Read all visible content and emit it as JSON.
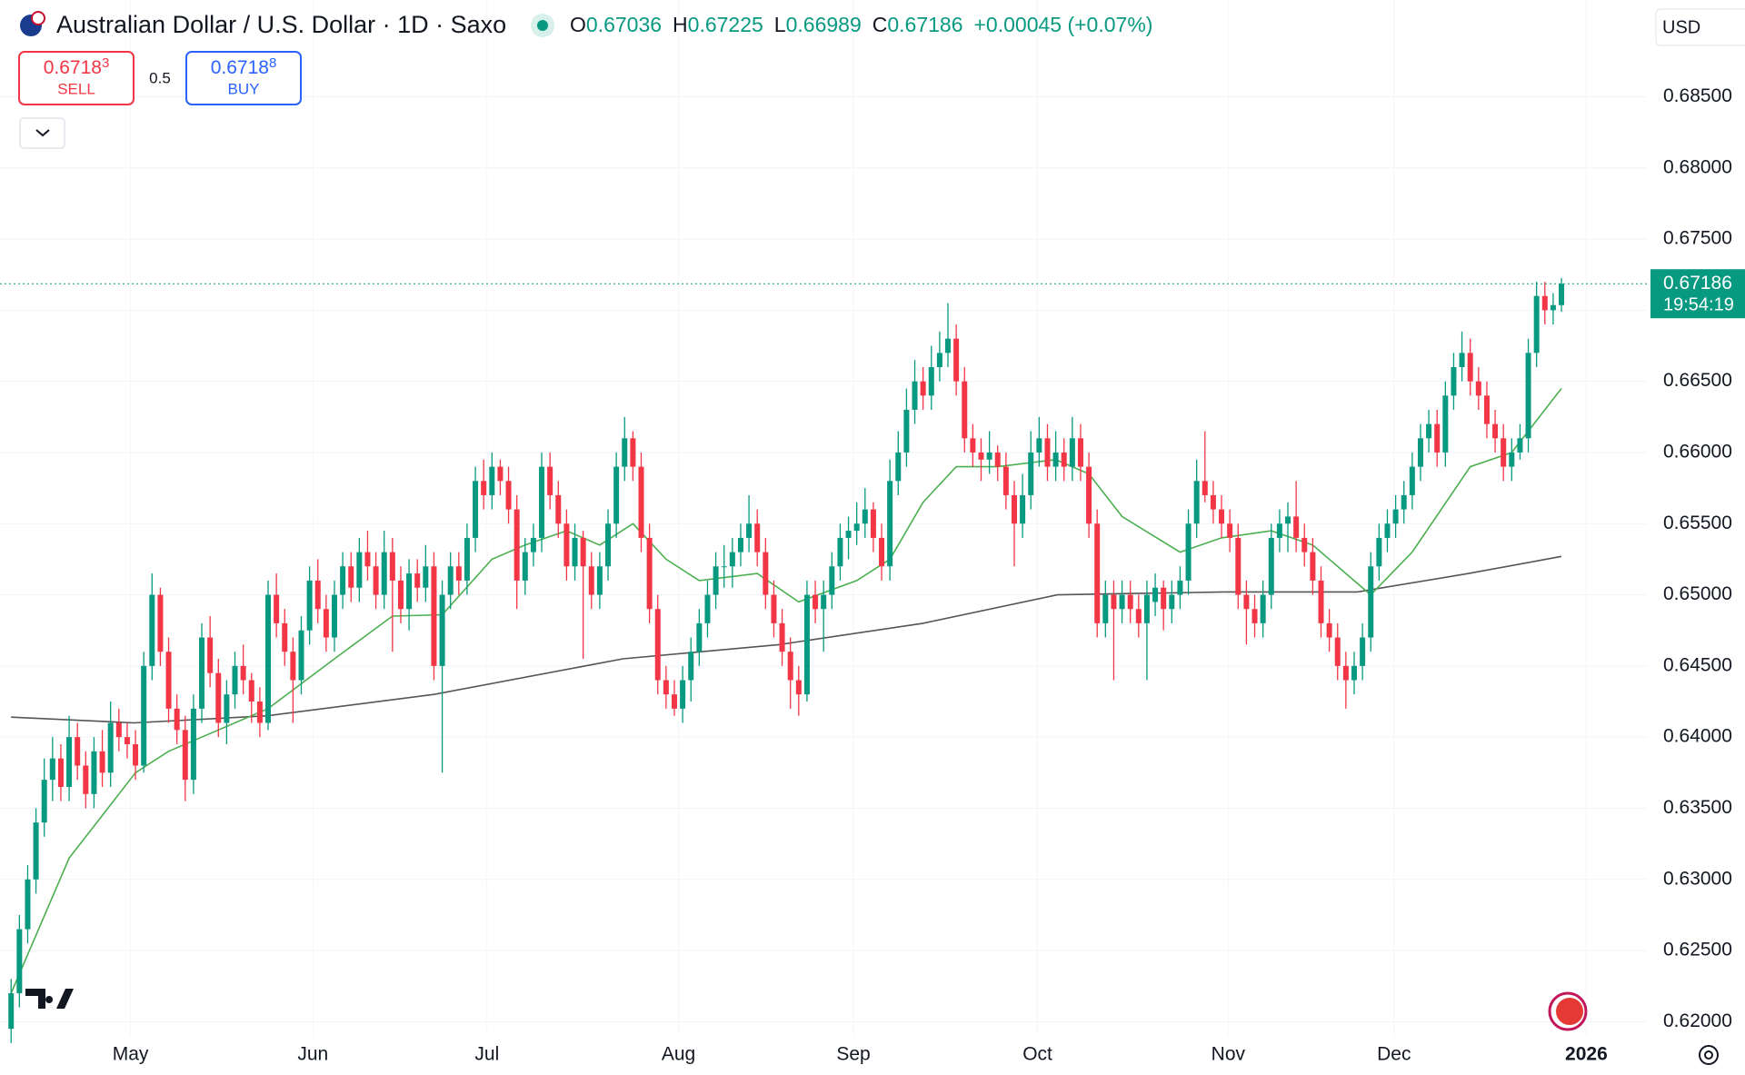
{
  "header": {
    "title": "Australian Dollar / U.S. Dollar · 1D · Saxo",
    "ohlc_labels": [
      "O",
      "H",
      "L",
      "C"
    ],
    "change": "+0.00045 (+0.07%)",
    "sell": {
      "price": "0.6718",
      "pip": "3",
      "label": "SELL"
    },
    "spread": "0.5",
    "buy": {
      "price": "0.6718",
      "pip": "8",
      "label": "BUY"
    },
    "currency": "USD",
    "countdown": "19:54:19"
  },
  "chart_data": {
    "type": "candlestick",
    "up_color": "#089981",
    "down_color": "#f23645",
    "grid": true,
    "ylim": [
      0.619,
      0.6918
    ],
    "xlim": [
      -1.34,
      197.3
    ],
    "yticks": [
      {
        "value": 0.685,
        "label": "0.68500"
      },
      {
        "value": 0.68,
        "label": "0.68000"
      },
      {
        "value": 0.675,
        "label": "0.67500"
      },
      {
        "value": 0.67,
        "label": "0.67000"
      },
      {
        "value": 0.665,
        "label": "0.66500"
      },
      {
        "value": 0.66,
        "label": "0.66000"
      },
      {
        "value": 0.655,
        "label": "0.65500"
      },
      {
        "value": 0.65,
        "label": "0.65000"
      },
      {
        "value": 0.645,
        "label": "0.64500"
      },
      {
        "value": 0.64,
        "label": "0.64000"
      },
      {
        "value": 0.635,
        "label": "0.63500"
      },
      {
        "value": 0.63,
        "label": "0.63000"
      },
      {
        "value": 0.625,
        "label": "0.62500"
      },
      {
        "value": 0.62,
        "label": "0.62000"
      }
    ],
    "xticks": [
      {
        "value": 14.4,
        "label": "May"
      },
      {
        "value": 36.4,
        "label": "Jun"
      },
      {
        "value": 57.4,
        "label": "Jul"
      },
      {
        "value": 80.5,
        "label": "Aug"
      },
      {
        "value": 101.6,
        "label": "Sep"
      },
      {
        "value": 123.8,
        "label": "Oct"
      },
      {
        "value": 146.8,
        "label": "Nov"
      },
      {
        "value": 166.8,
        "label": "Dec"
      },
      {
        "value": 190,
        "label": "2026"
      }
    ],
    "candles": [
      [
        0.6195,
        0.623,
        0.6185,
        0.622
      ],
      [
        0.622,
        0.6275,
        0.621,
        0.6265
      ],
      [
        0.6265,
        0.631,
        0.6255,
        0.63
      ],
      [
        0.63,
        0.635,
        0.629,
        0.634
      ],
      [
        0.634,
        0.6385,
        0.633,
        0.637
      ],
      [
        0.637,
        0.64,
        0.6355,
        0.6385
      ],
      [
        0.6385,
        0.6395,
        0.6355,
        0.6365
      ],
      [
        0.6365,
        0.6415,
        0.6355,
        0.64
      ],
      [
        0.64,
        0.641,
        0.637,
        0.638
      ],
      [
        0.638,
        0.639,
        0.635,
        0.636
      ],
      [
        0.636,
        0.64,
        0.635,
        0.639
      ],
      [
        0.639,
        0.6405,
        0.6365,
        0.6375
      ],
      [
        0.6375,
        0.6425,
        0.6365,
        0.641
      ],
      [
        0.641,
        0.642,
        0.639,
        0.64
      ],
      [
        0.64,
        0.641,
        0.6385,
        0.6395
      ],
      [
        0.6395,
        0.6405,
        0.637,
        0.638
      ],
      [
        0.638,
        0.646,
        0.6375,
        0.645
      ],
      [
        0.645,
        0.6515,
        0.644,
        0.65
      ],
      [
        0.65,
        0.6505,
        0.645,
        0.646
      ],
      [
        0.646,
        0.647,
        0.641,
        0.642
      ],
      [
        0.642,
        0.643,
        0.6395,
        0.6405
      ],
      [
        0.6405,
        0.6415,
        0.6355,
        0.637
      ],
      [
        0.637,
        0.643,
        0.636,
        0.642
      ],
      [
        0.642,
        0.648,
        0.641,
        0.647
      ],
      [
        0.647,
        0.6485,
        0.6435,
        0.6445
      ],
      [
        0.6445,
        0.6455,
        0.64,
        0.641
      ],
      [
        0.641,
        0.644,
        0.6395,
        0.643
      ],
      [
        0.643,
        0.646,
        0.642,
        0.645
      ],
      [
        0.645,
        0.6465,
        0.643,
        0.644
      ],
      [
        0.644,
        0.6445,
        0.641,
        0.6425
      ],
      [
        0.6425,
        0.6435,
        0.64,
        0.641
      ],
      [
        0.641,
        0.651,
        0.6405,
        0.65
      ],
      [
        0.65,
        0.6515,
        0.647,
        0.648
      ],
      [
        0.648,
        0.649,
        0.645,
        0.646
      ],
      [
        0.646,
        0.647,
        0.641,
        0.644
      ],
      [
        0.644,
        0.6485,
        0.643,
        0.6475
      ],
      [
        0.6475,
        0.652,
        0.6465,
        0.651
      ],
      [
        0.651,
        0.6525,
        0.648,
        0.649
      ],
      [
        0.649,
        0.65,
        0.646,
        0.647
      ],
      [
        0.647,
        0.651,
        0.646,
        0.65
      ],
      [
        0.65,
        0.653,
        0.649,
        0.652
      ],
      [
        0.652,
        0.653,
        0.6495,
        0.6505
      ],
      [
        0.6505,
        0.654,
        0.6495,
        0.653
      ],
      [
        0.653,
        0.6545,
        0.651,
        0.652
      ],
      [
        0.652,
        0.653,
        0.649,
        0.65
      ],
      [
        0.65,
        0.6545,
        0.649,
        0.653
      ],
      [
        0.653,
        0.654,
        0.646,
        0.651
      ],
      [
        0.651,
        0.652,
        0.648,
        0.649
      ],
      [
        0.649,
        0.6525,
        0.6475,
        0.6515
      ],
      [
        0.6515,
        0.6525,
        0.6495,
        0.6505
      ],
      [
        0.6505,
        0.6535,
        0.6495,
        0.652
      ],
      [
        0.652,
        0.653,
        0.644,
        0.645
      ],
      [
        0.645,
        0.651,
        0.6375,
        0.65
      ],
      [
        0.65,
        0.653,
        0.649,
        0.652
      ],
      [
        0.652,
        0.653,
        0.65,
        0.651
      ],
      [
        0.651,
        0.655,
        0.65,
        0.654
      ],
      [
        0.654,
        0.659,
        0.653,
        0.658
      ],
      [
        0.658,
        0.6595,
        0.656,
        0.657
      ],
      [
        0.657,
        0.66,
        0.656,
        0.659
      ],
      [
        0.659,
        0.6595,
        0.657,
        0.658
      ],
      [
        0.658,
        0.659,
        0.655,
        0.656
      ],
      [
        0.656,
        0.657,
        0.649,
        0.651
      ],
      [
        0.651,
        0.654,
        0.65,
        0.653
      ],
      [
        0.653,
        0.655,
        0.652,
        0.654
      ],
      [
        0.654,
        0.66,
        0.653,
        0.659
      ],
      [
        0.659,
        0.66,
        0.656,
        0.657
      ],
      [
        0.657,
        0.658,
        0.654,
        0.655
      ],
      [
        0.655,
        0.656,
        0.651,
        0.652
      ],
      [
        0.652,
        0.655,
        0.651,
        0.654
      ],
      [
        0.654,
        0.6545,
        0.6455,
        0.652
      ],
      [
        0.652,
        0.653,
        0.649,
        0.65
      ],
      [
        0.65,
        0.653,
        0.649,
        0.652
      ],
      [
        0.652,
        0.656,
        0.651,
        0.655
      ],
      [
        0.655,
        0.66,
        0.654,
        0.659
      ],
      [
        0.659,
        0.6625,
        0.658,
        0.661
      ],
      [
        0.661,
        0.6615,
        0.658,
        0.659
      ],
      [
        0.659,
        0.66,
        0.653,
        0.654
      ],
      [
        0.654,
        0.655,
        0.648,
        0.649
      ],
      [
        0.649,
        0.65,
        0.643,
        0.644
      ],
      [
        0.644,
        0.645,
        0.642,
        0.643
      ],
      [
        0.643,
        0.644,
        0.6415,
        0.642
      ],
      [
        0.642,
        0.645,
        0.641,
        0.644
      ],
      [
        0.644,
        0.647,
        0.6425,
        0.646
      ],
      [
        0.646,
        0.649,
        0.645,
        0.648
      ],
      [
        0.648,
        0.651,
        0.647,
        0.65
      ],
      [
        0.65,
        0.653,
        0.649,
        0.652
      ],
      [
        0.652,
        0.6535,
        0.6505,
        0.652
      ],
      [
        0.652,
        0.654,
        0.6505,
        0.653
      ],
      [
        0.653,
        0.655,
        0.652,
        0.654
      ],
      [
        0.654,
        0.657,
        0.653,
        0.655
      ],
      [
        0.655,
        0.656,
        0.652,
        0.653
      ],
      [
        0.653,
        0.654,
        0.649,
        0.65
      ],
      [
        0.65,
        0.651,
        0.647,
        0.648
      ],
      [
        0.648,
        0.649,
        0.645,
        0.646
      ],
      [
        0.646,
        0.647,
        0.642,
        0.644
      ],
      [
        0.644,
        0.645,
        0.6415,
        0.643
      ],
      [
        0.643,
        0.651,
        0.6425,
        0.65
      ],
      [
        0.65,
        0.651,
        0.648,
        0.649
      ],
      [
        0.649,
        0.651,
        0.646,
        0.65
      ],
      [
        0.65,
        0.653,
        0.649,
        0.652
      ],
      [
        0.652,
        0.655,
        0.651,
        0.654
      ],
      [
        0.654,
        0.6555,
        0.6525,
        0.6545
      ],
      [
        0.6545,
        0.6565,
        0.6535,
        0.655
      ],
      [
        0.655,
        0.6575,
        0.654,
        0.656
      ],
      [
        0.656,
        0.6565,
        0.653,
        0.654
      ],
      [
        0.654,
        0.655,
        0.651,
        0.652
      ],
      [
        0.652,
        0.6595,
        0.651,
        0.658
      ],
      [
        0.658,
        0.6615,
        0.657,
        0.66
      ],
      [
        0.66,
        0.6645,
        0.659,
        0.663
      ],
      [
        0.663,
        0.6665,
        0.662,
        0.665
      ],
      [
        0.665,
        0.666,
        0.663,
        0.664
      ],
      [
        0.664,
        0.6675,
        0.663,
        0.666
      ],
      [
        0.666,
        0.6685,
        0.665,
        0.667
      ],
      [
        0.667,
        0.6705,
        0.666,
        0.668
      ],
      [
        0.668,
        0.669,
        0.664,
        0.665
      ],
      [
        0.665,
        0.666,
        0.66,
        0.661
      ],
      [
        0.661,
        0.662,
        0.659,
        0.66
      ],
      [
        0.66,
        0.661,
        0.658,
        0.6595
      ],
      [
        0.6595,
        0.6615,
        0.6585,
        0.66
      ],
      [
        0.66,
        0.6605,
        0.658,
        0.659
      ],
      [
        0.659,
        0.66,
        0.656,
        0.657
      ],
      [
        0.657,
        0.658,
        0.652,
        0.655
      ],
      [
        0.655,
        0.6585,
        0.654,
        0.657
      ],
      [
        0.657,
        0.6615,
        0.656,
        0.66
      ],
      [
        0.66,
        0.6625,
        0.659,
        0.661
      ],
      [
        0.661,
        0.662,
        0.658,
        0.659
      ],
      [
        0.659,
        0.6615,
        0.658,
        0.66
      ],
      [
        0.66,
        0.661,
        0.658,
        0.659
      ],
      [
        0.659,
        0.6625,
        0.658,
        0.661
      ],
      [
        0.661,
        0.662,
        0.658,
        0.659
      ],
      [
        0.659,
        0.66,
        0.654,
        0.655
      ],
      [
        0.655,
        0.656,
        0.647,
        0.648
      ],
      [
        0.648,
        0.651,
        0.647,
        0.65
      ],
      [
        0.65,
        0.651,
        0.644,
        0.649
      ],
      [
        0.649,
        0.651,
        0.648,
        0.65
      ],
      [
        0.65,
        0.651,
        0.648,
        0.649
      ],
      [
        0.649,
        0.65,
        0.647,
        0.648
      ],
      [
        0.648,
        0.651,
        0.644,
        0.65
      ],
      [
        0.6495,
        0.6515,
        0.6485,
        0.6505
      ],
      [
        0.6505,
        0.651,
        0.6475,
        0.649
      ],
      [
        0.649,
        0.651,
        0.648,
        0.65
      ],
      [
        0.65,
        0.652,
        0.649,
        0.651
      ],
      [
        0.651,
        0.656,
        0.65,
        0.655
      ],
      [
        0.655,
        0.6595,
        0.654,
        0.658
      ],
      [
        0.658,
        0.6615,
        0.6565,
        0.657
      ],
      [
        0.657,
        0.658,
        0.655,
        0.656
      ],
      [
        0.656,
        0.657,
        0.654,
        0.655
      ],
      [
        0.655,
        0.656,
        0.653,
        0.654
      ],
      [
        0.654,
        0.655,
        0.649,
        0.65
      ],
      [
        0.65,
        0.651,
        0.6465,
        0.649
      ],
      [
        0.649,
        0.65,
        0.647,
        0.648
      ],
      [
        0.648,
        0.651,
        0.647,
        0.65
      ],
      [
        0.65,
        0.655,
        0.649,
        0.654
      ],
      [
        0.654,
        0.656,
        0.653,
        0.655
      ],
      [
        0.655,
        0.6565,
        0.653,
        0.6555
      ],
      [
        0.6555,
        0.658,
        0.653,
        0.654
      ],
      [
        0.654,
        0.655,
        0.652,
        0.653
      ],
      [
        0.653,
        0.654,
        0.65,
        0.651
      ],
      [
        0.651,
        0.652,
        0.647,
        0.648
      ],
      [
        0.648,
        0.649,
        0.646,
        0.647
      ],
      [
        0.647,
        0.648,
        0.644,
        0.645
      ],
      [
        0.645,
        0.646,
        0.642,
        0.644
      ],
      [
        0.644,
        0.646,
        0.643,
        0.645
      ],
      [
        0.645,
        0.648,
        0.644,
        0.647
      ],
      [
        0.647,
        0.653,
        0.646,
        0.652
      ],
      [
        0.652,
        0.655,
        0.651,
        0.654
      ],
      [
        0.654,
        0.656,
        0.653,
        0.655
      ],
      [
        0.655,
        0.657,
        0.654,
        0.656
      ],
      [
        0.656,
        0.658,
        0.655,
        0.657
      ],
      [
        0.657,
        0.66,
        0.656,
        0.659
      ],
      [
        0.659,
        0.662,
        0.658,
        0.661
      ],
      [
        0.661,
        0.663,
        0.66,
        0.662
      ],
      [
        0.662,
        0.663,
        0.659,
        0.66
      ],
      [
        0.66,
        0.665,
        0.659,
        0.664
      ],
      [
        0.664,
        0.667,
        0.663,
        0.666
      ],
      [
        0.666,
        0.6685,
        0.665,
        0.667
      ],
      [
        0.667,
        0.668,
        0.664,
        0.665
      ],
      [
        0.665,
        0.666,
        0.663,
        0.664
      ],
      [
        0.664,
        0.665,
        0.661,
        0.662
      ],
      [
        0.662,
        0.663,
        0.66,
        0.661
      ],
      [
        0.661,
        0.662,
        0.658,
        0.659
      ],
      [
        0.659,
        0.661,
        0.658,
        0.66
      ],
      [
        0.66,
        0.662,
        0.6595,
        0.661
      ],
      [
        0.661,
        0.668,
        0.66,
        0.667
      ],
      [
        0.667,
        0.672,
        0.666,
        0.671
      ],
      [
        0.671,
        0.672,
        0.669,
        0.67
      ],
      [
        0.67,
        0.6712,
        0.669,
        0.67036
      ],
      [
        0.67036,
        0.67225,
        0.66989,
        0.67186
      ]
    ],
    "series": [
      {
        "color": "#555555",
        "x": [
          0,
          14.8,
          30.9,
          51,
          73.8,
          92.6,
          110,
          126.2,
          146.3,
          162.4,
          175.8,
          187
        ],
        "values": [
          0.6414,
          0.641,
          0.6415,
          0.643,
          0.6455,
          0.6465,
          0.648,
          0.65,
          0.6502,
          0.6502,
          0.6515,
          0.6527
        ]
      },
      {
        "color": "#4caf50",
        "x": [
          0,
          7,
          15,
          19,
          25,
          31,
          39,
          46,
          52,
          58,
          62,
          67,
          71,
          75,
          79,
          83,
          90,
          95,
          102,
          106,
          110,
          114,
          119,
          126,
          130,
          134,
          141,
          146,
          152,
          157,
          164,
          169,
          176,
          181,
          187
        ],
        "values": [
          0.622,
          0.6315,
          0.6375,
          0.639,
          0.6405,
          0.642,
          0.6455,
          0.6485,
          0.6486,
          0.6525,
          0.6535,
          0.6545,
          0.6535,
          0.655,
          0.6525,
          0.651,
          0.6515,
          0.6495,
          0.651,
          0.6525,
          0.6565,
          0.659,
          0.659,
          0.6595,
          0.6585,
          0.6555,
          0.653,
          0.654,
          0.6545,
          0.6535,
          0.65,
          0.653,
          0.659,
          0.66,
          0.6645
        ]
      }
    ]
  }
}
